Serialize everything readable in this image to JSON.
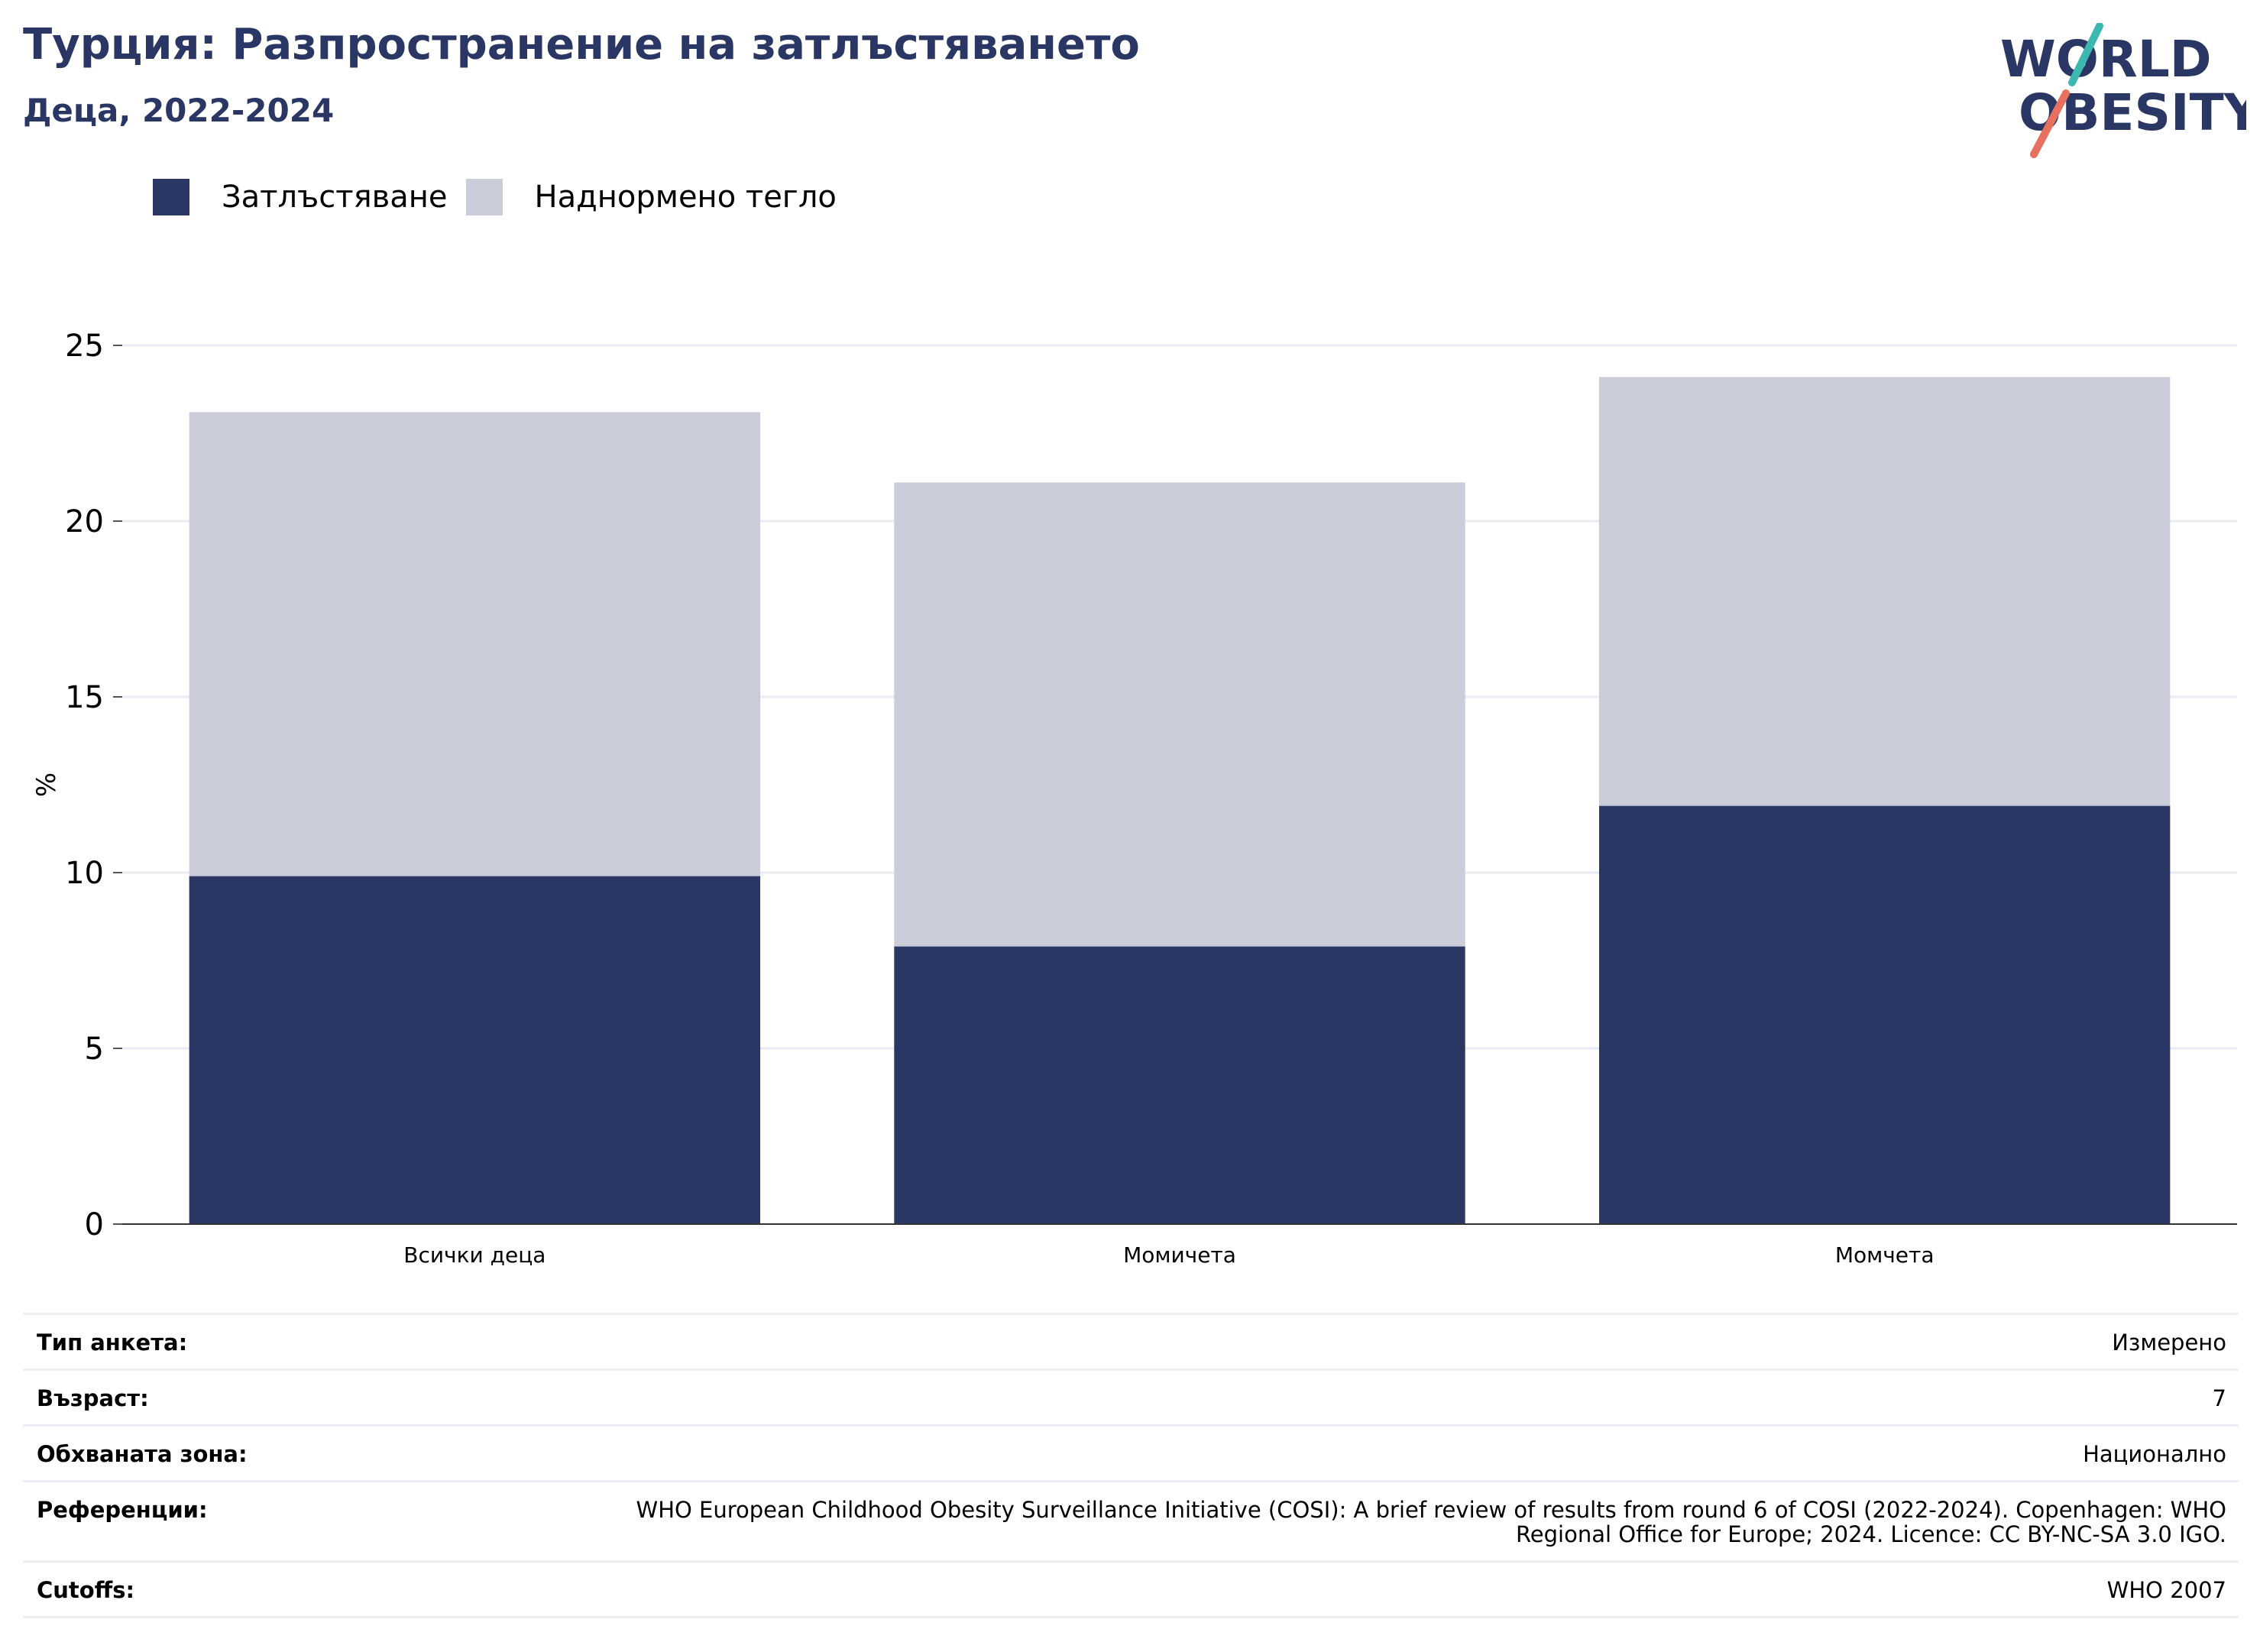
{
  "header": {
    "title": "Турция: Разпространение на затлъстяването",
    "subtitle": "Деца, 2022-2024"
  },
  "logo": {
    "line1": "WORLD",
    "line2": "OBESITY",
    "text_color": "#2a3764",
    "slash_teal": "#3db8b0",
    "slash_coral": "#e8705e"
  },
  "chart_data": {
    "type": "bar",
    "stacked": true,
    "categories": [
      "Всички деца",
      "Момичета",
      "Момчета"
    ],
    "series": [
      {
        "name": "Затлъстяване",
        "color": "#2a3764",
        "values": [
          9.9,
          7.9,
          11.9
        ]
      },
      {
        "name": "Наднормено тегло",
        "color": "#cacdd9",
        "values": [
          13.2,
          13.2,
          12.2
        ]
      }
    ],
    "ylabel": "%",
    "ylim": [
      0,
      25
    ],
    "yticks": [
      0,
      5,
      10,
      15,
      20,
      25
    ],
    "grid": true,
    "legend": "top-left"
  },
  "info": {
    "rows": [
      {
        "label": "Тип анкета:",
        "value": "Измерено"
      },
      {
        "label": "Възраст:",
        "value": "7"
      },
      {
        "label": "Обхваната зона:",
        "value": "Национално"
      },
      {
        "label": "Референции:",
        "value": "WHO European Childhood Obesity Surveillance Initiative (COSI): A brief review of results from round 6 of COSI (2022-2024). Copenhagen: WHO Regional Office for Europe; 2024. Licence: CC BY-NC-SA 3.0 IGO."
      },
      {
        "label": "Cutoffs:",
        "value": "WHO 2007"
      }
    ]
  }
}
